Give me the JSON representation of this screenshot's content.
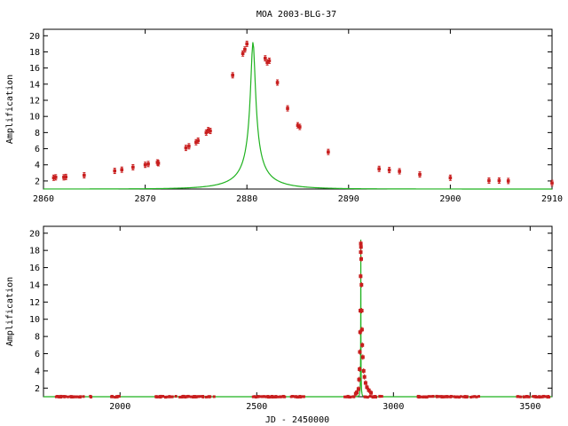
{
  "chart_data": [
    {
      "type": "scatter",
      "title": "MOA 2003-BLG-37",
      "xlabel": "",
      "ylabel": "Amplification",
      "xlim": [
        2860,
        2910
      ],
      "ylim": [
        1,
        20.8
      ],
      "xticks": [
        "2860",
        "2870",
        "2880",
        "2890",
        "2900",
        "2910"
      ],
      "yticks": [
        "2",
        "4",
        "6",
        "8",
        "10",
        "12",
        "14",
        "16",
        "18",
        "20"
      ],
      "model": {
        "t0": 2880.6,
        "u0": 0.052,
        "tE": 4.5,
        "mag": "#1fb21f"
      },
      "colors": {
        "points": "#c81e1e",
        "model": "#1fb21f"
      },
      "points": [
        [
          2861.0,
          2.4
        ],
        [
          2861.2,
          2.45
        ],
        [
          2862.0,
          2.45
        ],
        [
          2862.2,
          2.5
        ],
        [
          2864.0,
          2.7
        ],
        [
          2867.0,
          3.25
        ],
        [
          2867.7,
          3.4
        ],
        [
          2868.8,
          3.7
        ],
        [
          2870.0,
          4.0
        ],
        [
          2870.3,
          4.1
        ],
        [
          2871.2,
          4.3
        ],
        [
          2871.3,
          4.2
        ],
        [
          2874.0,
          6.1
        ],
        [
          2874.3,
          6.3
        ],
        [
          2875.0,
          6.8
        ],
        [
          2875.2,
          7.0
        ],
        [
          2876.0,
          8.0
        ],
        [
          2876.2,
          8.3
        ],
        [
          2876.4,
          8.2
        ],
        [
          2878.6,
          15.1
        ],
        [
          2879.6,
          17.8
        ],
        [
          2879.8,
          18.3
        ],
        [
          2880.0,
          19.0
        ],
        [
          2881.8,
          17.2
        ],
        [
          2882.0,
          16.7
        ],
        [
          2882.2,
          16.9
        ],
        [
          2883.0,
          14.2
        ],
        [
          2884.0,
          11.0
        ],
        [
          2885.0,
          8.9
        ],
        [
          2885.2,
          8.7
        ],
        [
          2888.0,
          5.6
        ],
        [
          2893.0,
          3.5
        ],
        [
          2894.0,
          3.35
        ],
        [
          2895.0,
          3.2
        ],
        [
          2897.0,
          2.8
        ],
        [
          2900.0,
          2.4
        ],
        [
          2903.8,
          2.05
        ],
        [
          2904.8,
          2.05
        ],
        [
          2905.7,
          2.0
        ],
        [
          2910.0,
          1.75
        ]
      ]
    },
    {
      "type": "scatter",
      "xlabel": "JD - 2450000",
      "ylabel": "Amplification",
      "xlim": [
        1720,
        3580
      ],
      "ylim": [
        1,
        20.8
      ],
      "xticks": [
        "2000",
        "2500",
        "3000",
        "3500"
      ],
      "yticks": [
        "2",
        "4",
        "6",
        "8",
        "10",
        "12",
        "14",
        "16",
        "18",
        "20"
      ],
      "baseline_ranges": [
        [
          1760,
          1900
        ],
        [
          1960,
          2000
        ],
        [
          2130,
          2350
        ],
        [
          2480,
          2680
        ],
        [
          2820,
          2860
        ],
        [
          2895,
          2960
        ],
        [
          3090,
          3320
        ],
        [
          3450,
          3570
        ]
      ],
      "peak_points": [
        [
          2872,
          1.9
        ],
        [
          2874,
          3.0
        ],
        [
          2876,
          4.2
        ],
        [
          2877,
          6.2
        ],
        [
          2878,
          8.5
        ],
        [
          2879,
          11.0
        ],
        [
          2880,
          15.0
        ],
        [
          2880.4,
          17.8
        ],
        [
          2880.6,
          18.8
        ],
        [
          2881.2,
          18.4
        ],
        [
          2882,
          17.0
        ],
        [
          2883,
          14.0
        ],
        [
          2884,
          11.0
        ],
        [
          2885,
          8.8
        ],
        [
          2886,
          7.0
        ],
        [
          2888,
          5.6
        ],
        [
          2891,
          4.0
        ],
        [
          2894,
          3.3
        ],
        [
          2898,
          2.6
        ],
        [
          2903,
          2.1
        ],
        [
          2910,
          1.75
        ],
        [
          2866,
          1.5
        ],
        [
          2862,
          1.35
        ],
        [
          2918,
          1.45
        ]
      ]
    }
  ]
}
